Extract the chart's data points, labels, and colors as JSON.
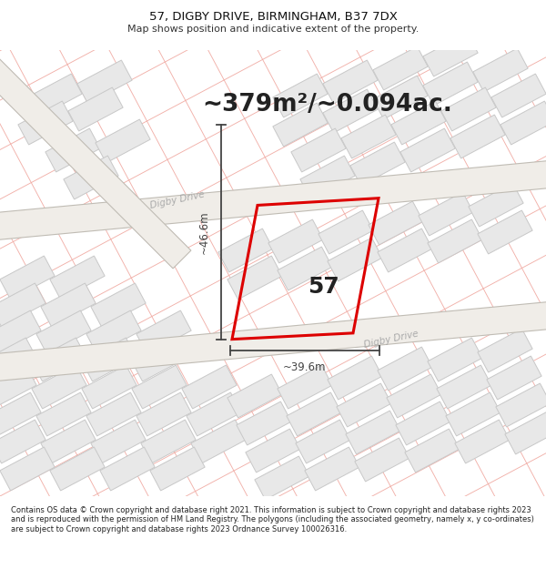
{
  "title": "57, DIGBY DRIVE, BIRMINGHAM, B37 7DX",
  "subtitle": "Map shows position and indicative extent of the property.",
  "area_text": "~379m²/~0.094ac.",
  "property_number": "57",
  "dim_width": "~39.6m",
  "dim_height": "~46.6m",
  "road_label_upper": "Digby Drive",
  "road_label_lower": "Digby Drive",
  "footer": "Contains OS data © Crown copyright and database right 2021. This information is subject to Crown copyright and database rights 2023 and is reproduced with the permission of HM Land Registry. The polygons (including the associated geometry, namely x, y co-ordinates) are subject to Crown copyright and database rights 2023 Ordnance Survey 100026316.",
  "bg_color": "#ffffff",
  "building_fill": "#e8e8e8",
  "building_stroke": "#c8c8c8",
  "cadastral_color": "#f0a8a0",
  "road_fill": "#f0ede8",
  "road_stroke": "#c0bcb4",
  "property_stroke": "#dd0000",
  "dim_color": "#444444",
  "road_label_color": "#aaaaaa",
  "area_text_color": "#222222"
}
